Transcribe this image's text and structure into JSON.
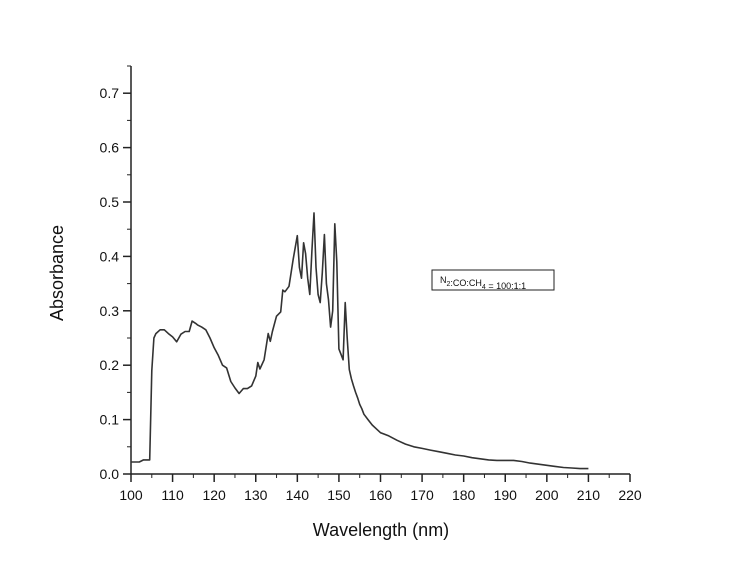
{
  "chart_data": {
    "type": "line",
    "xlabel": "Wavelength (nm)",
    "ylabel": "Absorbance",
    "xlim": [
      100,
      220
    ],
    "ylim": [
      0.0,
      0.75
    ],
    "x_ticks": [
      100,
      110,
      120,
      130,
      140,
      150,
      160,
      170,
      180,
      190,
      200,
      210,
      220
    ],
    "y_ticks": [
      0.0,
      0.1,
      0.2,
      0.3,
      0.4,
      0.5,
      0.6,
      0.7
    ],
    "y_tick_labels": [
      "0.0",
      "0.1",
      "0.2",
      "0.3",
      "0.4",
      "0.5",
      "0.6",
      "0.7"
    ],
    "grid": false,
    "legend": {
      "placement": "right",
      "parts": [
        {
          "text": "N",
          "sub": false
        },
        {
          "text": "2",
          "sub": true
        },
        {
          "text": ":CO:CH",
          "sub": false
        },
        {
          "text": "4",
          "sub": true
        },
        {
          "text": " = 100:1:1",
          "sub": false
        }
      ]
    },
    "series": [
      {
        "line_color": "#333333",
        "x": [
          100,
          101,
          102,
          103,
          104,
          104.5,
          105,
          105.5,
          106,
          107,
          108,
          109,
          110,
          111,
          112,
          113,
          114,
          114.7,
          115.5,
          116,
          117,
          118,
          119,
          120,
          121,
          122,
          123,
          124,
          125,
          126,
          127,
          128,
          129,
          130,
          130.5,
          131,
          132,
          133,
          133.5,
          134,
          135,
          136,
          136.5,
          137,
          138,
          138.5,
          139,
          140,
          140.5,
          141,
          141.5,
          142,
          142.5,
          143,
          143.5,
          144,
          144.5,
          145,
          145.5,
          146,
          146.5,
          147,
          147.5,
          148,
          148.5,
          149,
          149.5,
          150,
          150.5,
          151,
          151.5,
          152,
          152.5,
          153,
          153.5,
          154,
          154.5,
          155,
          155.5,
          156,
          157,
          158,
          159,
          160,
          162,
          164,
          166,
          168,
          170,
          172,
          174,
          176,
          178,
          180,
          182,
          184,
          186,
          188,
          190,
          192,
          194,
          196,
          198,
          200,
          202,
          204,
          206,
          208,
          210
        ],
        "y": [
          0.022,
          0.022,
          0.022,
          0.026,
          0.026,
          0.026,
          0.19,
          0.25,
          0.258,
          0.265,
          0.265,
          0.258,
          0.252,
          0.243,
          0.257,
          0.262,
          0.262,
          0.281,
          0.277,
          0.274,
          0.27,
          0.265,
          0.25,
          0.232,
          0.218,
          0.2,
          0.195,
          0.17,
          0.158,
          0.148,
          0.157,
          0.157,
          0.162,
          0.18,
          0.205,
          0.193,
          0.21,
          0.258,
          0.244,
          0.262,
          0.29,
          0.298,
          0.338,
          0.335,
          0.345,
          0.37,
          0.395,
          0.438,
          0.38,
          0.36,
          0.425,
          0.405,
          0.36,
          0.33,
          0.41,
          0.48,
          0.38,
          0.33,
          0.315,
          0.37,
          0.44,
          0.35,
          0.32,
          0.27,
          0.3,
          0.46,
          0.39,
          0.23,
          0.22,
          0.21,
          0.315,
          0.25,
          0.192,
          0.175,
          0.162,
          0.15,
          0.14,
          0.128,
          0.12,
          0.11,
          0.1,
          0.09,
          0.083,
          0.076,
          0.07,
          0.062,
          0.055,
          0.05,
          0.047,
          0.044,
          0.041,
          0.038,
          0.035,
          0.033,
          0.03,
          0.028,
          0.026,
          0.025,
          0.025,
          0.025,
          0.023,
          0.02,
          0.018,
          0.016,
          0.014,
          0.012,
          0.011,
          0.01,
          0.01
        ]
      }
    ]
  }
}
